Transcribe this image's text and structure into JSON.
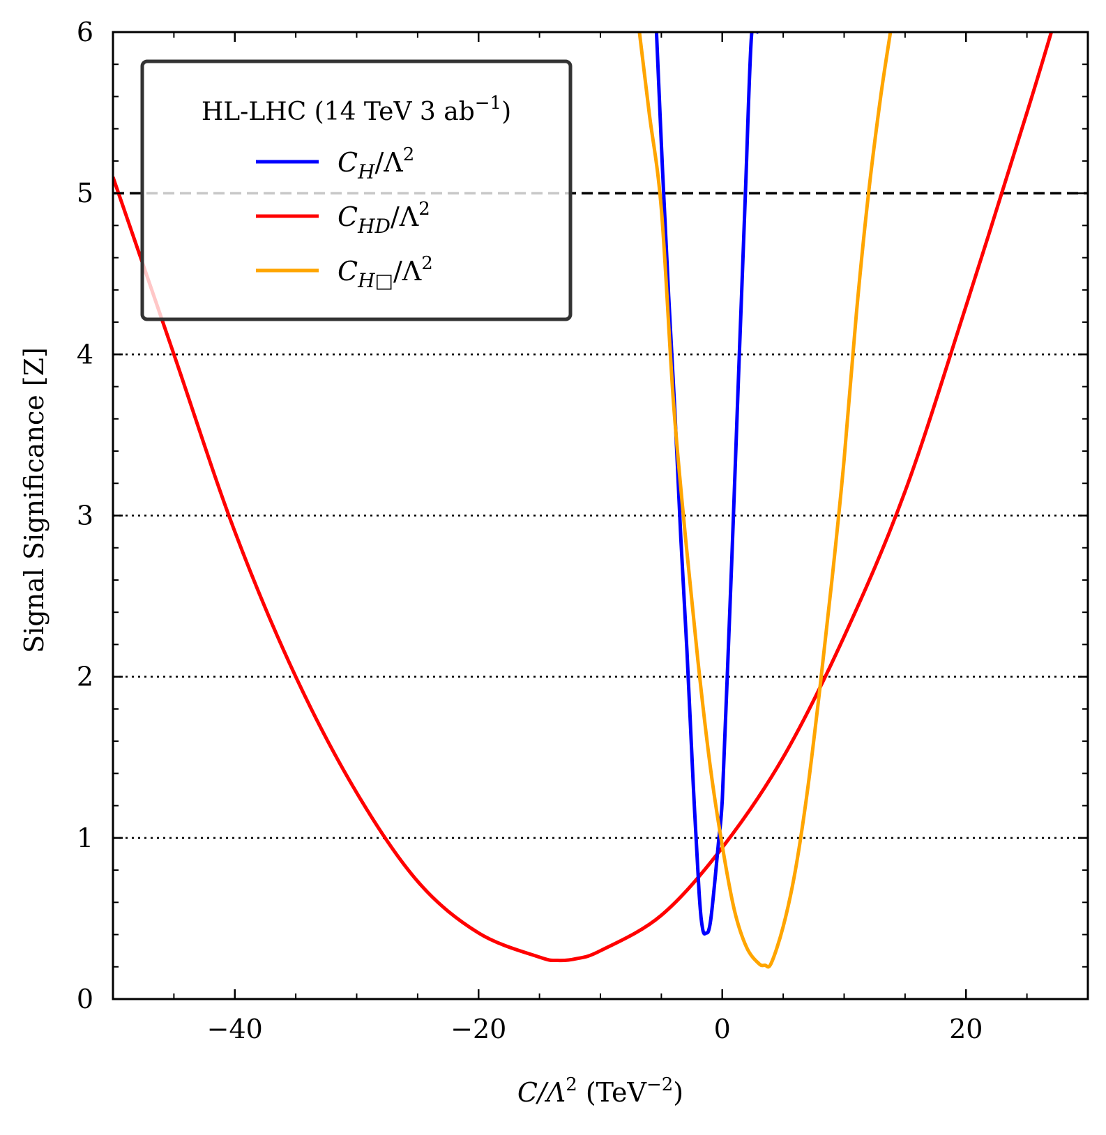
{
  "chart_data": {
    "type": "line",
    "xlabel": {
      "main": "C/Λ",
      "sup": "2",
      "units": " (TeV",
      "units_sup": "−2",
      "close": ")"
    },
    "ylabel": "Signal Significance [Z]",
    "xlim": [
      -50,
      30
    ],
    "ylim": [
      0,
      6
    ],
    "x_ticks": [
      -40,
      -20,
      0,
      20
    ],
    "x_tick_labels": [
      "−40",
      "−20",
      "0",
      "20"
    ],
    "y_ticks": [
      0,
      1,
      2,
      3,
      4,
      5,
      6
    ],
    "y_tick_labels": [
      "0",
      "1",
      "2",
      "3",
      "4",
      "5",
      "6"
    ],
    "reference_lines": [
      {
        "y": 5,
        "style": "dashed",
        "color": "#000000"
      },
      {
        "y": 4,
        "style": "dotted",
        "color": "#000000"
      },
      {
        "y": 3,
        "style": "dotted",
        "color": "#000000"
      },
      {
        "y": 2,
        "style": "dotted",
        "color": "#000000"
      },
      {
        "y": 1,
        "style": "dotted",
        "color": "#000000"
      }
    ],
    "legend": {
      "placement": "top-left",
      "title": {
        "main": "HL-LHC (14 TeV 3 ab",
        "sup": "−1",
        "close": ")"
      }
    },
    "series": [
      {
        "name": "C_H/Λ^2",
        "label_main": "C",
        "label_sub": "H",
        "label_rest": "/Λ",
        "label_sup": "2",
        "color": "#0000ff",
        "x": [
          -5.4,
          -4.9,
          -4.4,
          -3.9,
          -3.4,
          -2.9,
          -2.4,
          -1.9,
          -1.6,
          -1.3,
          -1.1,
          -0.9,
          -0.6,
          -0.3,
          0.0,
          0.4,
          0.9,
          1.4,
          1.9,
          2.4,
          2.9
        ],
        "y": [
          6.0,
          5.14,
          4.36,
          3.66,
          2.86,
          2.16,
          1.36,
          0.66,
          0.43,
          0.41,
          0.43,
          0.52,
          0.74,
          0.98,
          1.24,
          1.98,
          2.97,
          4.0,
          5.01,
          5.98,
          6.0
        ]
      },
      {
        "name": "C_HD/Λ^2",
        "label_main": "C",
        "label_sub": "HD",
        "label_rest": "/Λ",
        "label_sup": "2",
        "color": "#ff0000",
        "x": [
          -50,
          -45,
          -40,
          -35,
          -30,
          -25,
          -20,
          -15,
          -13.5,
          -12,
          -10,
          -5,
          0,
          5,
          10,
          15,
          20,
          25,
          27
        ],
        "y": [
          5.1,
          4.0,
          2.9,
          2.0,
          1.28,
          0.73,
          0.41,
          0.26,
          0.24,
          0.25,
          0.3,
          0.52,
          0.94,
          1.5,
          2.25,
          3.15,
          4.3,
          5.5,
          6.0
        ]
      },
      {
        "name": "C_H□/Λ^2",
        "label_main": "C",
        "label_sub": "H□",
        "label_rest": "/Λ",
        "label_sup": "2",
        "color": "#ffa500",
        "x": [
          -6.8,
          -6.0,
          -5.0,
          -4.0,
          -3.0,
          -2.0,
          -1.0,
          0.0,
          1.0,
          2.0,
          3.0,
          3.5,
          4.0,
          5.0,
          6.0,
          7.0,
          8.0,
          9.0,
          10.0,
          11.0,
          12.0,
          13.0,
          13.8
        ],
        "y": [
          6.0,
          5.5,
          4.9,
          3.7,
          2.85,
          2.1,
          1.45,
          0.95,
          0.55,
          0.32,
          0.22,
          0.21,
          0.22,
          0.45,
          0.8,
          1.3,
          1.92,
          2.6,
          3.35,
          4.25,
          5.0,
          5.6,
          6.0
        ]
      }
    ]
  }
}
